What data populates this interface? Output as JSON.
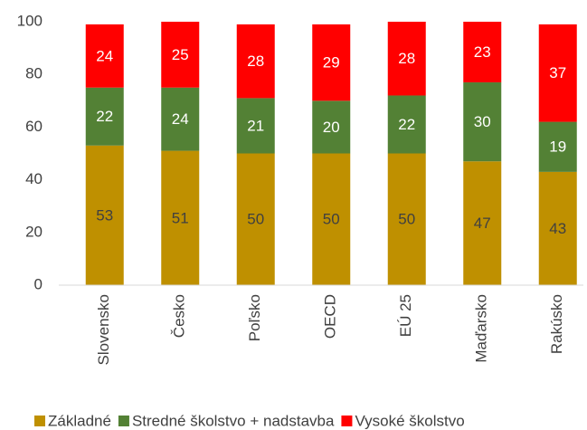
{
  "chart_data": {
    "type": "stacked-bar",
    "categories": [
      "Slovensko",
      "Česko",
      "Poľsko",
      "OECD",
      "EÚ 25",
      "Maďarsko",
      "Rakúsko"
    ],
    "series": [
      {
        "name": "Základné",
        "color": "#bf9000",
        "label_color": "#404040",
        "values": [
          53,
          51,
          50,
          50,
          50,
          47,
          43
        ]
      },
      {
        "name": "Stredné školstvo + nadstavba",
        "color": "#538135",
        "label_color": "#ffffff",
        "values": [
          22,
          24,
          21,
          20,
          22,
          30,
          19
        ]
      },
      {
        "name": "Vysoké školstvo",
        "color": "#ff0000",
        "label_color": "#ffffff",
        "values": [
          24,
          25,
          28,
          29,
          28,
          23,
          37
        ]
      }
    ],
    "ylim": [
      0,
      100
    ],
    "yticks": [
      0,
      20,
      40,
      60,
      80,
      100
    ],
    "grid": false,
    "legend": "bottom"
  }
}
